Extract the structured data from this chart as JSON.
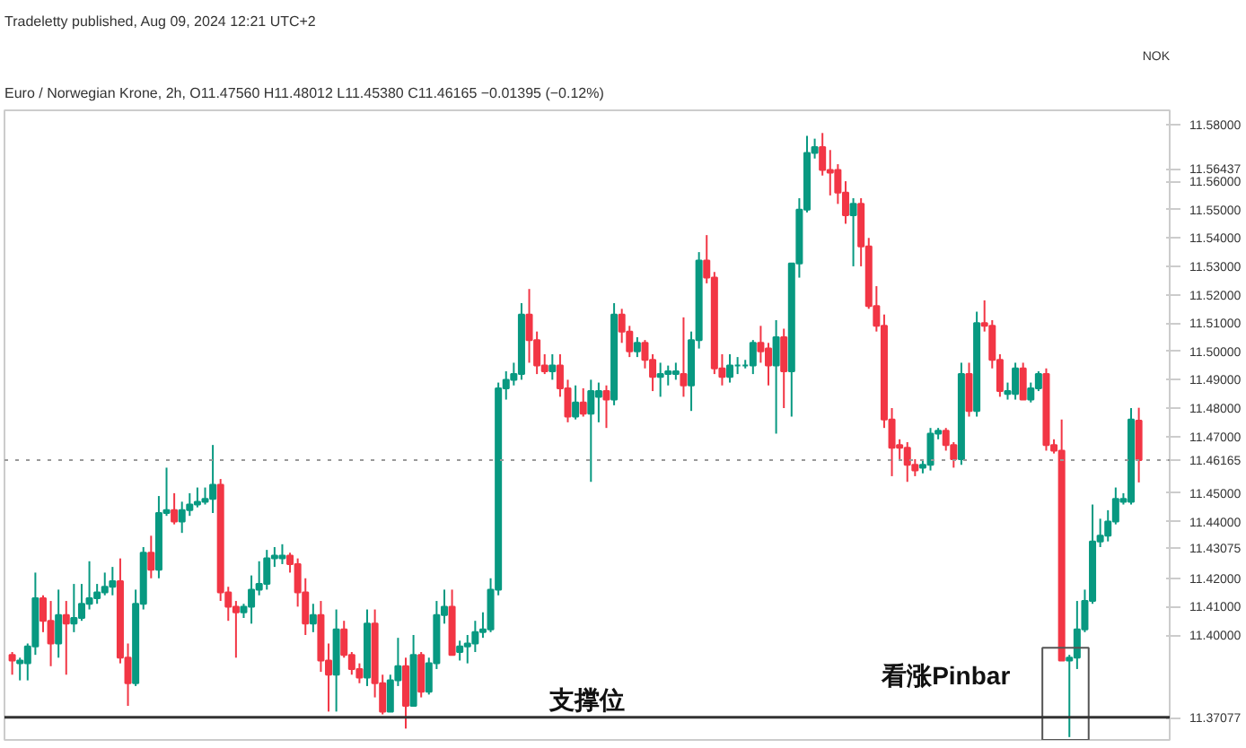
{
  "chart_data": {
    "type": "candlestick",
    "title": "Tradeletty published, Aug 09, 2024 12:21 UTC+2",
    "subtitle": "Euro / Norwegian Krone, 2h, O11.47560 H11.48012 L11.45380 C11.46165 −0.01395 (−0.12%)",
    "ylabel": "NOK",
    "categories": [
      null,
      null,
      null,
      null,
      null,
      null,
      null,
      null,
      null,
      null,
      null,
      null,
      null,
      null,
      null,
      null,
      null,
      null,
      null,
      null,
      null,
      null,
      null,
      null,
      null,
      null,
      null,
      null,
      null,
      null,
      null,
      null,
      null,
      null,
      null,
      null,
      null,
      null,
      null,
      null,
      null,
      null,
      null,
      null,
      null,
      null,
      null,
      null,
      null,
      null,
      null,
      null,
      null,
      null,
      null,
      null,
      null,
      null,
      null,
      null,
      null,
      null,
      null,
      null,
      null,
      null,
      null,
      null,
      null,
      null,
      null,
      null,
      null,
      null,
      null,
      null,
      null,
      null,
      null,
      null,
      null,
      null,
      null,
      null,
      null,
      null,
      null,
      null,
      null,
      null,
      null,
      null,
      null,
      null,
      null,
      null,
      null,
      null,
      null,
      null,
      null,
      null,
      null,
      null,
      null,
      null,
      null,
      null,
      null,
      null,
      null,
      null,
      null,
      null,
      null,
      null,
      null,
      null,
      null,
      null,
      null,
      null,
      null,
      null,
      null,
      null,
      null,
      null,
      null,
      null,
      null,
      null,
      null,
      null,
      null,
      null,
      null,
      null,
      null,
      null,
      null,
      null,
      null,
      null,
      null,
      null,
      null
    ],
    "ohlc": [
      [
        11.393,
        11.394,
        11.386,
        11.391
      ],
      [
        11.39,
        11.392,
        11.384,
        11.391
      ],
      [
        11.39,
        11.397,
        11.384,
        11.396
      ],
      [
        11.396,
        11.422,
        11.393,
        11.413
      ],
      [
        11.413,
        11.414,
        11.401,
        11.405
      ],
      [
        11.405,
        11.412,
        11.389,
        11.397
      ],
      [
        11.397,
        11.416,
        11.392,
        11.407
      ],
      [
        11.407,
        11.412,
        11.386,
        11.404
      ],
      [
        11.404,
        11.418,
        11.401,
        11.406
      ],
      [
        11.406,
        11.418,
        11.405,
        11.411
      ],
      [
        11.411,
        11.426,
        11.409,
        11.413
      ],
      [
        11.413,
        11.418,
        11.411,
        11.415
      ],
      [
        11.415,
        11.422,
        11.414,
        11.417
      ],
      [
        11.417,
        11.424,
        11.414,
        11.419
      ],
      [
        11.419,
        11.427,
        11.39,
        11.392
      ],
      [
        11.392,
        11.397,
        11.375,
        11.383
      ],
      [
        11.383,
        11.416,
        11.382,
        11.411
      ],
      [
        11.411,
        11.431,
        11.409,
        11.429
      ],
      [
        11.429,
        11.435,
        11.42,
        11.423
      ],
      [
        11.423,
        11.449,
        11.42,
        11.443
      ],
      [
        11.443,
        11.459,
        11.442,
        11.444
      ],
      [
        11.444,
        11.45,
        11.439,
        11.44
      ],
      [
        11.44,
        11.447,
        11.436,
        11.444
      ],
      [
        11.444,
        11.45,
        11.442,
        11.446
      ],
      [
        11.446,
        11.452,
        11.445,
        11.447
      ],
      [
        11.447,
        11.452,
        11.446,
        11.448
      ],
      [
        11.448,
        11.467,
        11.443,
        11.453
      ],
      [
        11.453,
        11.455,
        11.412,
        11.415
      ],
      [
        11.415,
        11.417,
        11.405,
        11.41
      ],
      [
        11.41,
        11.412,
        11.392,
        11.408
      ],
      [
        11.408,
        11.411,
        11.406,
        11.41
      ],
      [
        11.41,
        11.421,
        11.404,
        11.416
      ],
      [
        11.416,
        11.426,
        11.414,
        11.418
      ],
      [
        11.418,
        11.43,
        11.416,
        11.427
      ],
      [
        11.427,
        11.431,
        11.424,
        11.428
      ],
      [
        11.427,
        11.432,
        11.425,
        11.428
      ],
      [
        11.428,
        11.429,
        11.422,
        11.425
      ],
      [
        11.425,
        11.427,
        11.41,
        11.415
      ],
      [
        11.415,
        11.42,
        11.4,
        11.404
      ],
      [
        11.404,
        11.411,
        11.401,
        11.407
      ],
      [
        11.407,
        11.412,
        11.387,
        11.391
      ],
      [
        11.391,
        11.397,
        11.373,
        11.386
      ],
      [
        11.386,
        11.409,
        11.373,
        11.402
      ],
      [
        11.402,
        11.405,
        11.392,
        11.393
      ],
      [
        11.393,
        11.394,
        11.386,
        11.388
      ],
      [
        11.388,
        11.39,
        11.383,
        11.385
      ],
      [
        11.385,
        11.409,
        11.382,
        11.404
      ],
      [
        11.404,
        11.409,
        11.378,
        11.383
      ],
      [
        11.383,
        11.386,
        11.372,
        11.373
      ],
      [
        11.373,
        11.386,
        11.373,
        11.384
      ],
      [
        11.384,
        11.399,
        11.382,
        11.389
      ],
      [
        11.389,
        11.392,
        11.367,
        11.375
      ],
      [
        11.375,
        11.4,
        11.375,
        11.393
      ],
      [
        11.393,
        11.394,
        11.378,
        11.38
      ],
      [
        11.38,
        11.392,
        11.379,
        11.39
      ],
      [
        11.39,
        11.412,
        11.388,
        11.407
      ],
      [
        11.407,
        11.416,
        11.404,
        11.41
      ],
      [
        11.41,
        11.416,
        11.393,
        11.393
      ],
      [
        11.394,
        11.398,
        11.391,
        11.396
      ],
      [
        11.396,
        11.4,
        11.39,
        11.397
      ],
      [
        11.397,
        11.405,
        11.394,
        11.401
      ],
      [
        11.401,
        11.408,
        11.399,
        11.402
      ],
      [
        11.402,
        11.42,
        11.401,
        11.416
      ],
      [
        11.416,
        11.489,
        11.414,
        11.487
      ],
      [
        11.487,
        11.493,
        11.483,
        11.49
      ],
      [
        11.49,
        11.496,
        11.488,
        11.492
      ],
      [
        11.492,
        11.517,
        11.49,
        11.513
      ],
      [
        11.513,
        11.522,
        11.496,
        11.504
      ],
      [
        11.504,
        11.507,
        11.492,
        11.495
      ],
      [
        11.495,
        11.499,
        11.492,
        11.493
      ],
      [
        11.493,
        11.499,
        11.49,
        11.495
      ],
      [
        11.495,
        11.499,
        11.484,
        11.487
      ],
      [
        11.487,
        11.49,
        11.475,
        11.477
      ],
      [
        11.477,
        11.488,
        11.476,
        11.482
      ],
      [
        11.482,
        11.487,
        11.477,
        11.478
      ],
      [
        11.478,
        11.49,
        11.454,
        11.486
      ],
      [
        11.484,
        11.489,
        11.475,
        11.486
      ],
      [
        11.486,
        11.488,
        11.473,
        11.483
      ],
      [
        11.483,
        11.517,
        11.481,
        11.513
      ],
      [
        11.513,
        11.515,
        11.503,
        11.507
      ],
      [
        11.507,
        11.509,
        11.498,
        11.5
      ],
      [
        11.5,
        11.505,
        11.498,
        11.503
      ],
      [
        11.503,
        11.504,
        11.494,
        11.497
      ],
      [
        11.497,
        11.499,
        11.486,
        11.491
      ],
      [
        11.491,
        11.496,
        11.484,
        11.492
      ],
      [
        11.492,
        11.495,
        11.488,
        11.493
      ],
      [
        11.492,
        11.496,
        11.49,
        11.493
      ],
      [
        11.492,
        11.512,
        11.484,
        11.488
      ],
      [
        11.488,
        11.507,
        11.479,
        11.504
      ],
      [
        11.504,
        11.535,
        11.501,
        11.532
      ],
      [
        11.532,
        11.541,
        11.524,
        11.526
      ],
      [
        11.526,
        11.528,
        11.492,
        11.494
      ],
      [
        11.494,
        11.499,
        11.488,
        11.491
      ],
      [
        11.491,
        11.499,
        11.489,
        11.495
      ],
      [
        11.495,
        11.498,
        11.492,
        11.495
      ],
      [
        11.495,
        11.497,
        11.494,
        11.495
      ],
      [
        11.495,
        11.504,
        11.492,
        11.503
      ],
      [
        11.503,
        11.509,
        11.496,
        11.5
      ],
      [
        11.501,
        11.503,
        11.488,
        11.495
      ],
      [
        11.495,
        11.511,
        11.471,
        11.505
      ],
      [
        11.505,
        11.508,
        11.48,
        11.493
      ],
      [
        11.493,
        11.531,
        11.477,
        11.531
      ],
      [
        11.531,
        11.554,
        11.526,
        11.55
      ],
      [
        11.55,
        11.576,
        11.549,
        11.57
      ],
      [
        11.57,
        11.575,
        11.568,
        11.572
      ],
      [
        11.572,
        11.577,
        11.562,
        11.564
      ],
      [
        11.564,
        11.571,
        11.555,
        11.563
      ],
      [
        11.564,
        11.566,
        11.552,
        11.556
      ],
      [
        11.556,
        11.56,
        11.545,
        11.548
      ],
      [
        11.548,
        11.554,
        11.53,
        11.552
      ],
      [
        11.552,
        11.554,
        11.53,
        11.537
      ],
      [
        11.537,
        11.54,
        11.515,
        11.516
      ],
      [
        11.516,
        11.523,
        11.507,
        11.509
      ],
      [
        11.509,
        11.513,
        11.473,
        11.476
      ],
      [
        11.476,
        11.48,
        11.456,
        11.466
      ],
      [
        11.467,
        11.469,
        11.462,
        11.466
      ],
      [
        11.466,
        11.468,
        11.454,
        11.46
      ],
      [
        11.46,
        11.462,
        11.456,
        11.458
      ],
      [
        11.459,
        11.462,
        11.457,
        11.46
      ],
      [
        11.46,
        11.473,
        11.458,
        11.471
      ],
      [
        11.471,
        11.473,
        11.469,
        11.472
      ],
      [
        11.472,
        11.473,
        11.465,
        11.467
      ],
      [
        11.467,
        11.468,
        11.459,
        11.462
      ],
      [
        11.462,
        11.496,
        11.46,
        11.492
      ],
      [
        11.492,
        11.496,
        11.477,
        11.479
      ],
      [
        11.479,
        11.514,
        11.477,
        11.51
      ],
      [
        11.51,
        11.518,
        11.507,
        11.509
      ],
      [
        11.509,
        11.511,
        11.494,
        11.497
      ],
      [
        11.497,
        11.499,
        11.484,
        11.486
      ],
      [
        11.485,
        11.489,
        11.483,
        11.486
      ],
      [
        11.485,
        11.496,
        11.483,
        11.494
      ],
      [
        11.494,
        11.496,
        11.483,
        11.483
      ],
      [
        11.483,
        11.489,
        11.482,
        11.487
      ],
      [
        11.487,
        11.493,
        11.486,
        11.492
      ],
      [
        11.492,
        11.494,
        11.465,
        11.467
      ],
      [
        11.467,
        11.469,
        11.464,
        11.465
      ],
      [
        11.465,
        11.476,
        11.391,
        11.391
      ],
      [
        11.391,
        11.393,
        11.364,
        11.392
      ],
      [
        11.392,
        11.412,
        11.388,
        11.402
      ],
      [
        11.402,
        11.416,
        11.401,
        11.412
      ],
      [
        11.412,
        11.446,
        11.411,
        11.433
      ],
      [
        11.433,
        11.441,
        11.431,
        11.435
      ],
      [
        11.435,
        11.444,
        11.433,
        11.44
      ],
      [
        11.44,
        11.452,
        11.439,
        11.448
      ],
      [
        11.447,
        11.45,
        11.446,
        11.448
      ],
      [
        11.447,
        11.48,
        11.446,
        11.476
      ],
      [
        11.4756,
        11.48012,
        11.4538,
        11.46165
      ]
    ],
    "colors": [
      "#f23645",
      "#089981",
      "#089981",
      "#089981",
      "#f23645",
      "#f23645",
      "#089981",
      "#f23645",
      "#089981",
      "#089981",
      "#089981",
      "#089981",
      "#089981",
      "#089981",
      "#f23645",
      "#f23645",
      "#089981",
      "#089981",
      "#f23645",
      "#089981",
      "#089981",
      "#f23645",
      "#089981",
      "#089981",
      "#089981",
      "#089981",
      "#089981",
      "#f23645",
      "#f23645",
      "#f23645",
      "#089981",
      "#089981",
      "#089981",
      "#089981",
      "#089981",
      "#089981",
      "#f23645",
      "#f23645",
      "#f23645",
      "#089981",
      "#f23645",
      "#f23645",
      "#089981",
      "#f23645",
      "#f23645",
      "#f23645",
      "#089981",
      "#f23645",
      "#f23645",
      "#089981",
      "#089981",
      "#f23645",
      "#089981",
      "#f23645",
      "#089981",
      "#089981",
      "#089981",
      "#f23645",
      "#089981",
      "#089981",
      "#089981",
      "#089981",
      "#089981",
      "#089981",
      "#089981",
      "#089981",
      "#089981",
      "#f23645",
      "#f23645",
      "#f23645",
      "#089981",
      "#f23645",
      "#f23645",
      "#089981",
      "#f23645",
      "#089981",
      "#089981",
      "#f23645",
      "#089981",
      "#f23645",
      "#f23645",
      "#089981",
      "#f23645",
      "#f23645",
      "#089981",
      "#089981",
      "#089981",
      "#f23645",
      "#089981",
      "#089981",
      "#f23645",
      "#f23645",
      "#f23645",
      "#089981",
      "#089981",
      "#089981",
      "#089981",
      "#f23645",
      "#f23645",
      "#089981",
      "#f23645",
      "#089981",
      "#089981",
      "#089981",
      "#089981",
      "#f23645",
      "#f23645",
      "#f23645",
      "#f23645",
      "#089981",
      "#f23645",
      "#f23645",
      "#f23645",
      "#f23645",
      "#f23645",
      "#f23645",
      "#f23645",
      "#f23645",
      "#089981",
      "#089981",
      "#089981",
      "#f23645",
      "#f23645",
      "#089981",
      "#f23645",
      "#089981",
      "#f23645",
      "#f23645",
      "#f23645",
      "#089981",
      "#089981",
      "#f23645",
      "#089981",
      "#089981",
      "#f23645",
      "#f23645",
      "#f23645",
      "#089981",
      "#089981",
      "#089981",
      "#089981",
      "#089981",
      "#089981",
      "#089981",
      "#089981",
      "#089981",
      "#f23645"
    ],
    "ylim": [
      11.363,
      11.585
    ],
    "yticks": [
      {
        "value": 11.37077,
        "label": "11.37077"
      },
      {
        "value": 11.4,
        "label": "11.40000"
      },
      {
        "value": 11.41,
        "label": "11.41000"
      },
      {
        "value": 11.42,
        "label": "11.42000"
      },
      {
        "value": 11.43075,
        "label": "11.43075"
      },
      {
        "value": 11.44,
        "label": "11.44000"
      },
      {
        "value": 11.45,
        "label": "11.45000"
      },
      {
        "value": 11.47,
        "label": "11.47000"
      },
      {
        "value": 11.48,
        "label": "11.48000"
      },
      {
        "value": 11.49,
        "label": "11.49000"
      },
      {
        "value": 11.5,
        "label": "11.50000"
      },
      {
        "value": 11.51,
        "label": "11.51000"
      },
      {
        "value": 11.52,
        "label": "11.52000"
      },
      {
        "value": 11.53,
        "label": "11.53000"
      },
      {
        "value": 11.54,
        "label": "11.54000"
      },
      {
        "value": 11.55,
        "label": "11.55000"
      },
      {
        "value": 11.56,
        "label": "11.56000"
      },
      {
        "value": 11.56437,
        "label": "11.56437"
      },
      {
        "value": 11.58,
        "label": "11.58000"
      }
    ],
    "tick_labels": "y",
    "ref_lines": [
      {
        "axis": "y",
        "value": 11.46165,
        "label": "11.46165",
        "color": "#999999",
        "line_style": "dotted"
      },
      {
        "axis": "y",
        "value": 11.371,
        "label": "支撑位",
        "color": "#333333",
        "line_style": "solid"
      }
    ],
    "annotations": [
      "看涨Pinbar"
    ]
  }
}
